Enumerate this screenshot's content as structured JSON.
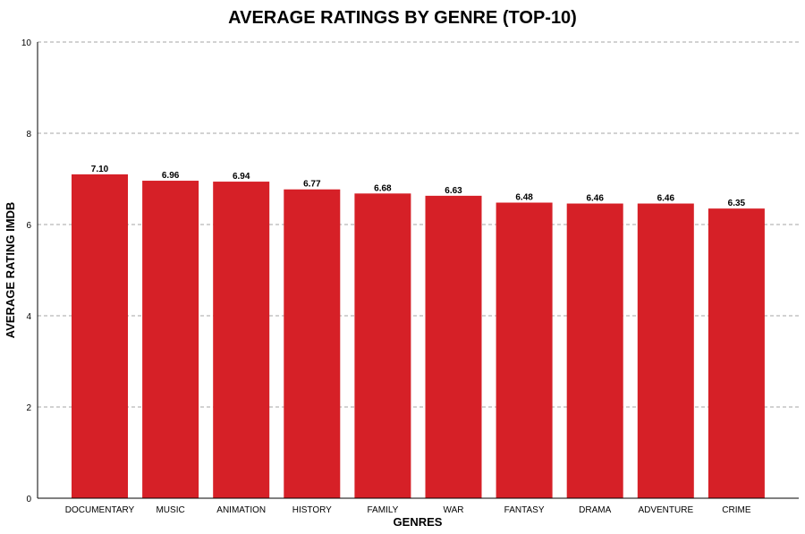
{
  "chart_data": {
    "type": "bar",
    "title": "AVERAGE RATINGS BY GENRE (TOP-10)",
    "xlabel": "GENRES",
    "ylabel": "AVERAGE RATING IMDB",
    "categories": [
      "DOCUMENTARY",
      "MUSIC",
      "ANIMATION",
      "HISTORY",
      "FAMILY",
      "WAR",
      "FANTASY",
      "DRAMA",
      "ADVENTURE",
      "CRIME"
    ],
    "values": [
      7.1,
      6.96,
      6.94,
      6.77,
      6.68,
      6.63,
      6.48,
      6.46,
      6.46,
      6.35
    ],
    "data_labels": [
      "7.10",
      "6.96",
      "6.94",
      "6.77",
      "6.68",
      "6.63",
      "6.48",
      "6.46",
      "6.46",
      "6.35"
    ],
    "yticks": [
      0,
      2,
      4,
      6,
      8,
      10
    ],
    "ylim": [
      0,
      10
    ],
    "grid": "horizontal dashed",
    "bar_color": "#d62027"
  }
}
